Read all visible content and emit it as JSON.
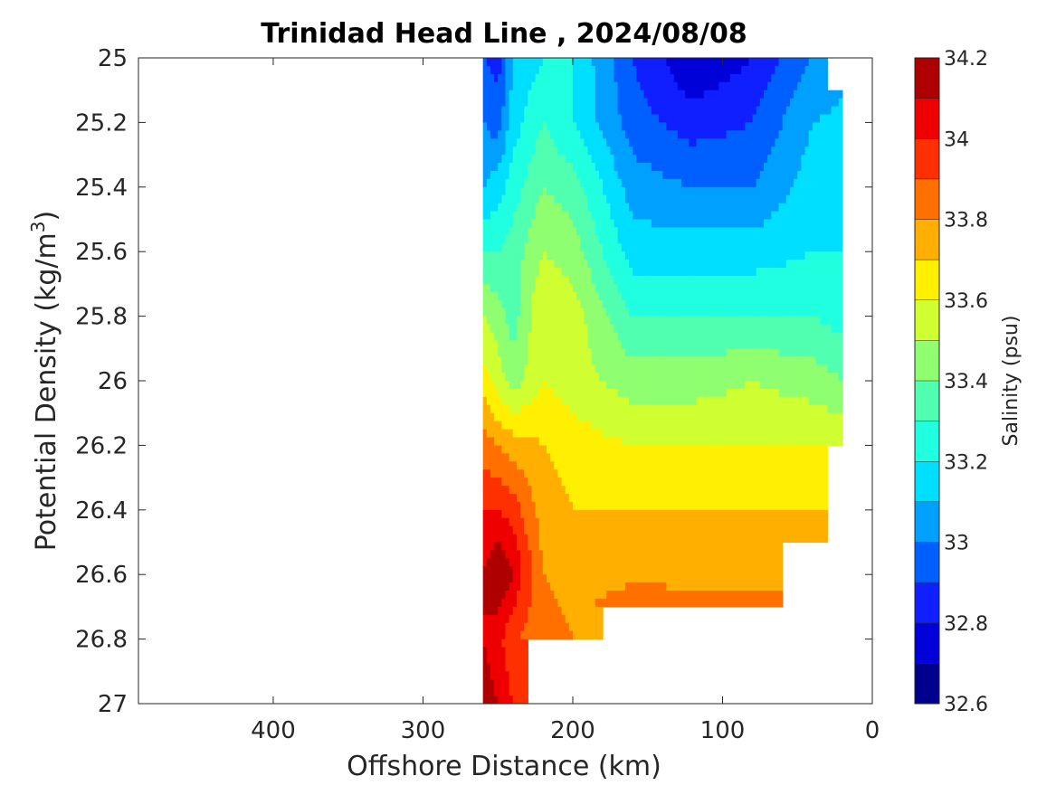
{
  "chart_data": {
    "type": "heatmap",
    "subtype": "filled-contour",
    "title": "Trinidad Head Line , 2024/08/08",
    "xlabel": "Offshore Distance (km)",
    "ylabel_main": "Potential Density (kg/m",
    "ylabel_sup": "3",
    "ylabel_end": ")",
    "xlim": [
      490,
      0
    ],
    "x_reversed": true,
    "ylim": [
      25,
      27
    ],
    "y_reversed": true,
    "x_ticks": [
      400,
      300,
      200,
      100,
      0
    ],
    "y_ticks": [
      25,
      25.2,
      25.4,
      25.6,
      25.8,
      26,
      26.2,
      26.4,
      26.6,
      26.8,
      27
    ],
    "colorbar": {
      "label": "Salinity (psu)",
      "range": [
        32.6,
        34.2
      ],
      "ticks": [
        32.6,
        32.8,
        33,
        33.2,
        33.4,
        33.6,
        33.8,
        34,
        34.2
      ],
      "level_step": 0.1,
      "colors": [
        "#00008f",
        "#0000d9",
        "#0f1fff",
        "#0060ff",
        "#00a0ff",
        "#00dfff",
        "#20ffdf",
        "#50ffaf",
        "#8fff70",
        "#cfff30",
        "#ffef00",
        "#ffaf00",
        "#ff7000",
        "#ff3000",
        "#ef0000",
        "#af0000"
      ]
    },
    "data_extent": {
      "x_km": [
        20,
        260
      ],
      "density_range": [
        25,
        27
      ]
    },
    "x_stations_km": [
      260,
      250,
      240,
      230,
      220,
      210,
      200,
      180,
      160,
      140,
      120,
      100,
      80,
      60,
      40,
      20
    ],
    "salinity_vs_density_by_station": [
      {
        "x": 260,
        "d": [
          25.0,
          25.2,
          25.4,
          25.6,
          25.8,
          26.0,
          26.2,
          26.4,
          26.6,
          26.8,
          27.0
        ],
        "s": [
          32.9,
          33.0,
          33.1,
          33.3,
          33.5,
          33.65,
          33.85,
          34.0,
          34.1,
          34.1,
          34.15
        ]
      },
      {
        "x": 250,
        "d": [
          25.0,
          25.2,
          25.4,
          25.6,
          25.8,
          26.0,
          26.2,
          26.4,
          26.6,
          26.8,
          27.0
        ],
        "s": [
          32.85,
          32.95,
          33.15,
          33.3,
          33.45,
          33.55,
          33.8,
          34.0,
          34.2,
          34.05,
          34.1
        ]
      },
      {
        "x": 240,
        "d": [
          25.0,
          25.2,
          25.4,
          25.6,
          25.8,
          26.0,
          26.2,
          26.4,
          26.6,
          26.8,
          27.0
        ],
        "s": [
          33.1,
          33.15,
          33.25,
          33.35,
          33.35,
          33.45,
          33.75,
          33.95,
          34.1,
          33.9,
          34.0
        ]
      },
      {
        "x": 220,
        "d": [
          25.0,
          25.2,
          25.4,
          25.6,
          25.8,
          26.0,
          26.2,
          26.4,
          26.6,
          26.8
        ],
        "s": [
          33.2,
          33.3,
          33.4,
          33.5,
          33.6,
          33.6,
          33.7,
          33.75,
          33.8,
          33.85
        ]
      },
      {
        "x": 200,
        "d": [
          25.0,
          25.2,
          25.4,
          25.6,
          25.8,
          26.0,
          26.2,
          26.4,
          26.6,
          26.8
        ],
        "s": [
          33.2,
          33.2,
          33.35,
          33.45,
          33.55,
          33.55,
          33.65,
          33.7,
          33.75,
          33.8
        ]
      },
      {
        "x": 160,
        "d": [
          25.0,
          25.2,
          25.4,
          25.6,
          25.8,
          26.0,
          26.2,
          26.4,
          26.6,
          26.7
        ],
        "s": [
          32.9,
          32.95,
          33.05,
          33.15,
          33.3,
          33.45,
          33.6,
          33.7,
          33.78,
          33.85
        ]
      },
      {
        "x": 120,
        "d": [
          25.0,
          25.2,
          25.4,
          25.6,
          25.8,
          26.0,
          26.2,
          26.4,
          26.6,
          26.7
        ],
        "s": [
          32.7,
          32.85,
          33.0,
          33.15,
          33.3,
          33.45,
          33.6,
          33.7,
          33.78,
          33.82
        ]
      },
      {
        "x": 80,
        "d": [
          25.0,
          25.2,
          25.4,
          25.6,
          25.8,
          26.0,
          26.2,
          26.4,
          26.6,
          26.7
        ],
        "s": [
          32.8,
          32.9,
          33.0,
          33.15,
          33.3,
          33.5,
          33.6,
          33.7,
          33.78,
          33.82
        ]
      },
      {
        "x": 40,
        "d": [
          25.0,
          25.2,
          25.4,
          25.6,
          25.8,
          26.0,
          26.2,
          26.4,
          26.5
        ],
        "s": [
          33.0,
          33.1,
          33.15,
          33.2,
          33.3,
          33.45,
          33.6,
          33.7,
          33.75
        ]
      },
      {
        "x": 20,
        "d": [
          25.1,
          25.4,
          25.8,
          26.0,
          26.2
        ],
        "s": [
          33.1,
          33.15,
          33.25,
          33.4,
          33.6
        ]
      }
    ]
  }
}
